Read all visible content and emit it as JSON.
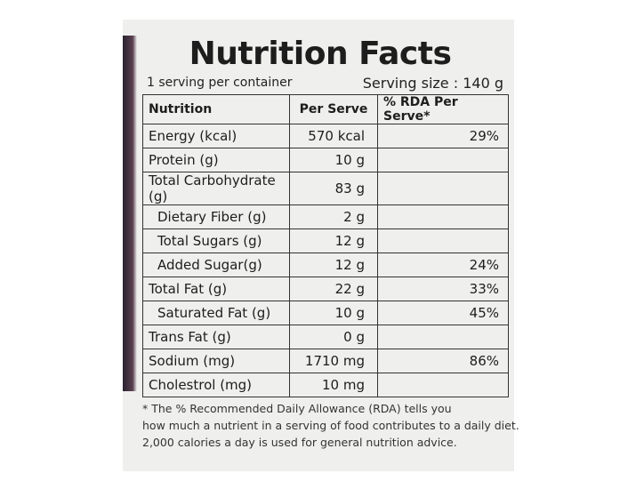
{
  "header": {
    "title": "Nutrition Facts",
    "servings": "1 serving per container",
    "serving_size": "Serving size : 140 g"
  },
  "table": {
    "columns": [
      "Nutrition",
      "Per Serve",
      "% RDA Per Serve*"
    ],
    "rows": [
      [
        "Energy (kcal)",
        "570 kcal",
        "29%"
      ],
      [
        "Protein (g)",
        "10 g",
        ""
      ],
      [
        "Total Carbohydrate (g)",
        "83 g",
        ""
      ],
      [
        "Dietary Fiber (g)",
        "2 g",
        ""
      ],
      [
        "Total Sugars (g)",
        "12 g",
        ""
      ],
      [
        "Added Sugar(g)",
        "12 g",
        "24%"
      ],
      [
        "Total Fat (g)",
        "22 g",
        "33%"
      ],
      [
        "Saturated Fat (g)",
        "10 g",
        "45%"
      ],
      [
        "Trans Fat (g)",
        "0 g",
        ""
      ],
      [
        "Sodium (mg)",
        "1710 mg",
        "86%"
      ],
      [
        "Cholestrol (mg)",
        "10 mg",
        ""
      ]
    ]
  },
  "footnote": [
    "* The % Recommended Daily Allowance (RDA) tells you",
    "how much a nutrient in a serving of food contributes to a daily diet.",
    "2,000 calories a day is used for general nutrition advice."
  ]
}
